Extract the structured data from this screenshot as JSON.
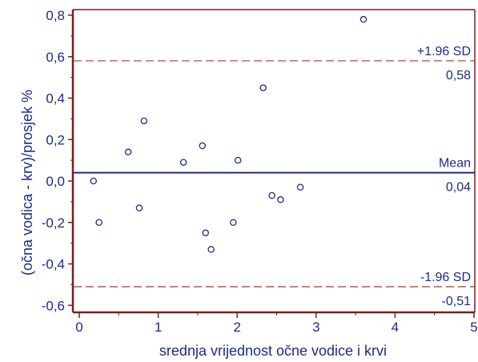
{
  "chart_data": {
    "type": "scatter",
    "title": "",
    "xlabel": "srednja vrijednost očne vodice i krvi",
    "ylabel": "(očna vodica - krv)/prosjek %",
    "xlim": [
      0,
      5
    ],
    "ylim": [
      -0.65,
      0.85
    ],
    "xticks": [
      0,
      1,
      2,
      3,
      4,
      5
    ],
    "xtick_labels": [
      "0",
      "1",
      "2",
      "3",
      "4",
      "5"
    ],
    "yticks": [
      -0.6,
      -0.4,
      -0.2,
      0.0,
      0.2,
      0.4,
      0.6,
      0.8
    ],
    "ytick_labels": [
      "-0,6",
      "-0,4",
      "-0,2",
      "0,0",
      "0,2",
      "0,4",
      "0,6",
      "0,8"
    ],
    "grid": false,
    "points": [
      {
        "x": 0.18,
        "y": 0.0
      },
      {
        "x": 0.25,
        "y": -0.2
      },
      {
        "x": 0.62,
        "y": 0.14
      },
      {
        "x": 0.76,
        "y": -0.13
      },
      {
        "x": 0.82,
        "y": 0.29
      },
      {
        "x": 1.32,
        "y": 0.09
      },
      {
        "x": 1.56,
        "y": 0.17
      },
      {
        "x": 1.6,
        "y": -0.25
      },
      {
        "x": 1.67,
        "y": -0.33
      },
      {
        "x": 1.95,
        "y": -0.2
      },
      {
        "x": 2.01,
        "y": 0.1
      },
      {
        "x": 2.33,
        "y": 0.45
      },
      {
        "x": 2.44,
        "y": -0.07
      },
      {
        "x": 2.55,
        "y": -0.09
      },
      {
        "x": 2.8,
        "y": -0.03
      },
      {
        "x": 3.6,
        "y": 0.78
      }
    ],
    "reference_lines": [
      {
        "label": "+1.96 SD",
        "value": 0.58,
        "value_label": "0,58",
        "style": "dashed",
        "color": "#a33a2e"
      },
      {
        "label": "Mean",
        "value": 0.04,
        "value_label": "0,04",
        "style": "solid",
        "color": "#1e2a8a"
      },
      {
        "label": "-1.96 SD",
        "value": -0.51,
        "value_label": "-0,51",
        "style": "dashed",
        "color": "#a33a2e"
      }
    ],
    "colors": {
      "axis_frame": "#7a1f1f",
      "text": "#1e2a8a",
      "marker": "#1e2a8a"
    }
  }
}
